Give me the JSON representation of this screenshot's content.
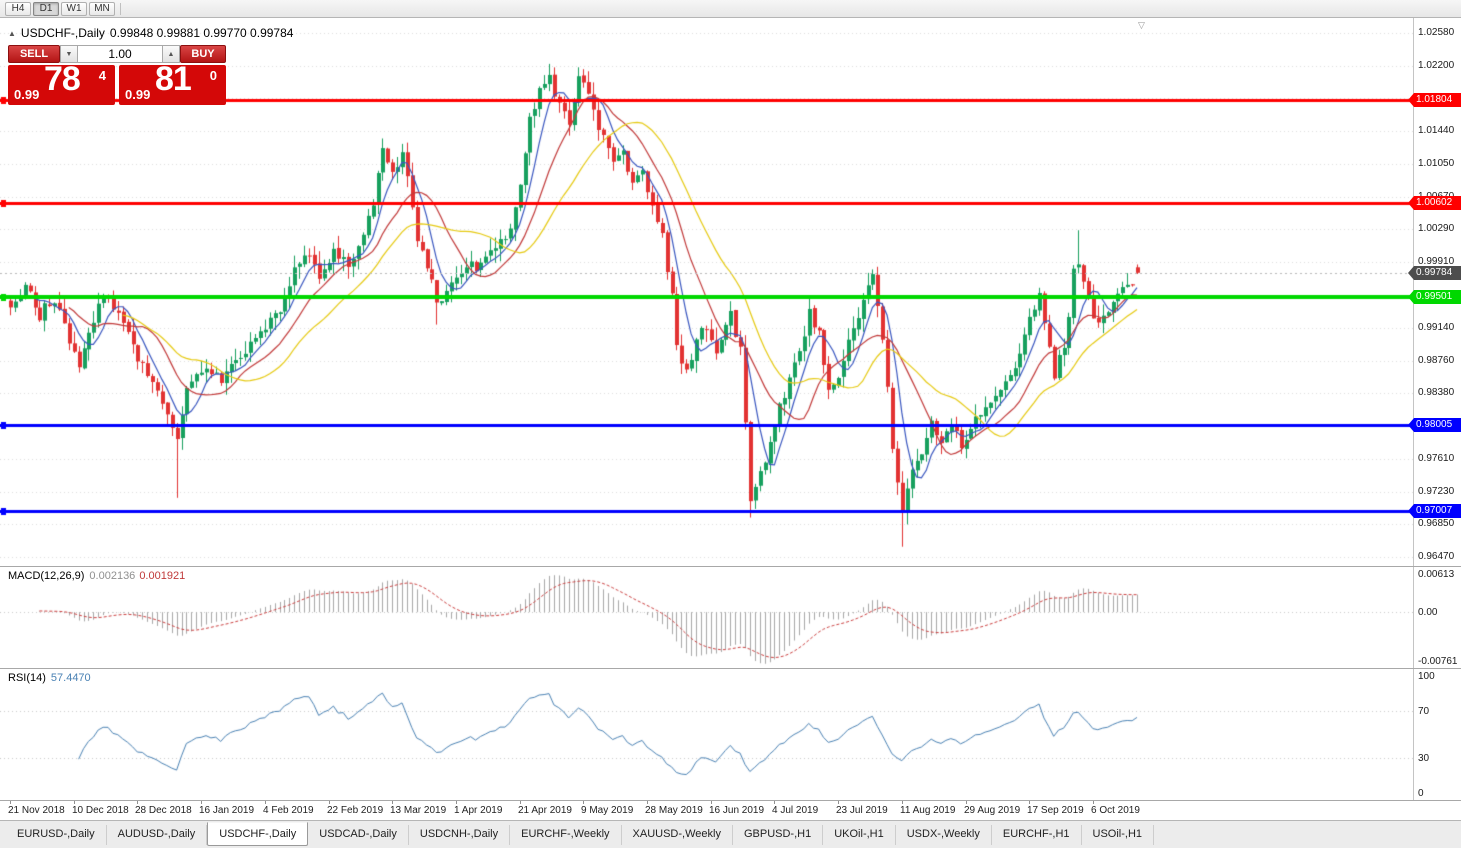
{
  "icons": {
    "collapse": "▲",
    "shift_marker": "▽",
    "spin_down": "▼",
    "spin_up": "▲"
  },
  "toolbar": {
    "periods": [
      "H4",
      "D1",
      "W1",
      "MN"
    ],
    "active_period": "D1"
  },
  "chart": {
    "title_symbol": "USDCHF-,Daily",
    "title_ohlc": "0.99848 0.99881 0.99770 0.99784",
    "one_click": {
      "sell_label": "SELL",
      "buy_label": "BUY",
      "volume": "1.00",
      "sell_price": {
        "prefix": "0.99",
        "big": "78",
        "sup": "4"
      },
      "buy_price": {
        "prefix": "0.99",
        "big": "81",
        "sup": "0"
      }
    }
  },
  "chart_data": {
    "type": "candlestick",
    "symbol": "USDCHF-",
    "timeframe": "Daily",
    "last_bar": {
      "open": 0.99848,
      "high": 0.99881,
      "low": 0.9977,
      "close": 0.99784
    },
    "bar_count": 231,
    "bars_per_label": 13,
    "x_labels": [
      "21 Nov 2018",
      "10 Dec 2018",
      "28 Dec 2018",
      "16 Jan 2019",
      "4 Feb 2019",
      "22 Feb 2019",
      "13 Mar 2019",
      "1 Apr 2019",
      "21 Apr 2019",
      "9 May 2019",
      "28 May 2019",
      "16 Jun 2019",
      "4 Jul 2019",
      "23 Jul 2019",
      "11 Aug 2019",
      "29 Aug 2019",
      "17 Sep 2019",
      "6 Oct 2019"
    ],
    "price_axis": {
      "top": 1.02755,
      "bottom": 0.96365,
      "ticks": [
        {
          "price": 1.0258,
          "label": "1.02580"
        },
        {
          "price": 1.022,
          "label": "1.02200"
        },
        {
          "price": 1.0144,
          "label": "1.01440"
        },
        {
          "price": 1.0105,
          "label": "1.01050"
        },
        {
          "price": 1.0067,
          "label": "1.00670"
        },
        {
          "price": 1.0029,
          "label": "1.00290"
        },
        {
          "price": 0.9991,
          "label": "0.99910"
        },
        {
          "price": 0.9914,
          "label": "0.99140"
        },
        {
          "price": 0.9876,
          "label": "0.98760"
        },
        {
          "price": 0.9838,
          "label": "0.98380"
        },
        {
          "price": 0.9761,
          "label": "0.97610"
        },
        {
          "price": 0.9723,
          "label": "0.97230"
        },
        {
          "price": 0.9685,
          "label": "0.96850"
        },
        {
          "price": 0.9647,
          "label": "0.96470"
        }
      ],
      "grid_prices": [
        1.0258,
        1.022,
        1.0182,
        1.0144,
        1.0105,
        1.0067,
        1.0029,
        0.9991,
        0.9953,
        0.9914,
        0.9876,
        0.9838,
        0.98,
        0.9761,
        0.9723,
        0.9685,
        0.9647
      ]
    },
    "anchor_format": [
      "bar_index",
      "close"
    ],
    "close_anchors": [
      [
        0,
        0.9945
      ],
      [
        3,
        0.9962
      ],
      [
        6,
        0.993
      ],
      [
        9,
        0.9948
      ],
      [
        12,
        0.9895
      ],
      [
        14,
        0.9868
      ],
      [
        17,
        0.992
      ],
      [
        19,
        0.9958
      ],
      [
        22,
        0.993
      ],
      [
        25,
        0.989
      ],
      [
        28,
        0.9862
      ],
      [
        31,
        0.983
      ],
      [
        33,
        0.9802
      ],
      [
        34,
        0.9785
      ],
      [
        36,
        0.9845
      ],
      [
        39,
        0.9868
      ],
      [
        43,
        0.9852
      ],
      [
        47,
        0.9885
      ],
      [
        51,
        0.9908
      ],
      [
        55,
        0.9938
      ],
      [
        58,
        0.9985
      ],
      [
        60,
        1.0002
      ],
      [
        63,
        0.9978
      ],
      [
        66,
        1.0
      ],
      [
        69,
        0.9988
      ],
      [
        71,
        1.0008
      ],
      [
        74,
        1.0058
      ],
      [
        76,
        1.0118
      ],
      [
        78,
        1.0095
      ],
      [
        80,
        1.0118
      ],
      [
        83,
        1.0022
      ],
      [
        85,
        0.999
      ],
      [
        87,
        0.9938
      ],
      [
        90,
        0.9968
      ],
      [
        93,
        0.999
      ],
      [
        96,
        0.9985
      ],
      [
        99,
        1.0005
      ],
      [
        101,
        1.0018
      ],
      [
        104,
        1.0075
      ],
      [
        106,
        1.0155
      ],
      [
        108,
        1.0192
      ],
      [
        110,
        1.0208
      ],
      [
        112,
        1.0172
      ],
      [
        114,
        1.0155
      ],
      [
        116,
        1.0202
      ],
      [
        118,
        1.0188
      ],
      [
        120,
        1.0148
      ],
      [
        123,
        1.0105
      ],
      [
        125,
        1.0118
      ],
      [
        127,
        1.0085
      ],
      [
        129,
        1.0098
      ],
      [
        131,
        1.0058
      ],
      [
        133,
        1.0022
      ],
      [
        135,
        0.9948
      ],
      [
        136,
        0.9892
      ],
      [
        138,
        0.9862
      ],
      [
        141,
        0.992
      ],
      [
        144,
        0.988
      ],
      [
        147,
        0.9928
      ],
      [
        149,
        0.9888
      ],
      [
        150,
        0.98
      ],
      [
        151,
        0.9712
      ],
      [
        153,
        0.9748
      ],
      [
        155,
        0.9775
      ],
      [
        157,
        0.982
      ],
      [
        159,
        0.9855
      ],
      [
        161,
        0.9888
      ],
      [
        163,
        0.9932
      ],
      [
        165,
        0.9905
      ],
      [
        167,
        0.9838
      ],
      [
        169,
        0.9862
      ],
      [
        171,
        0.99
      ],
      [
        173,
        0.9928
      ],
      [
        175,
        0.9962
      ],
      [
        176,
        0.9972
      ],
      [
        177,
        0.9935
      ],
      [
        178,
        0.9895
      ],
      [
        179,
        0.984
      ],
      [
        180,
        0.978
      ],
      [
        181,
        0.973
      ],
      [
        182,
        0.97
      ],
      [
        184,
        0.9748
      ],
      [
        186,
        0.9772
      ],
      [
        188,
        0.9802
      ],
      [
        190,
        0.9778
      ],
      [
        192,
        0.9802
      ],
      [
        194,
        0.9772
      ],
      [
        196,
        0.9798
      ],
      [
        198,
        0.9812
      ],
      [
        200,
        0.9828
      ],
      [
        202,
        0.9845
      ],
      [
        205,
        0.9872
      ],
      [
        207,
        0.9908
      ],
      [
        209,
        0.9942
      ],
      [
        210,
        0.9958
      ],
      [
        212,
        0.989
      ],
      [
        213,
        0.9862
      ],
      [
        215,
        0.9895
      ],
      [
        216,
        0.992
      ],
      [
        217,
        0.9985
      ],
      [
        218,
        0.9995
      ],
      [
        219,
        0.997
      ],
      [
        220,
        0.9945
      ],
      [
        221,
        0.9928
      ],
      [
        222,
        0.9915
      ],
      [
        224,
        0.9935
      ],
      [
        226,
        0.9952
      ],
      [
        228,
        0.9962
      ],
      [
        230,
        0.99784
      ]
    ],
    "spikes": [
      {
        "i": 34,
        "low": 0.9716
      },
      {
        "i": 76,
        "high": 1.0135
      },
      {
        "i": 87,
        "low": 0.9918
      },
      {
        "i": 110,
        "high": 1.0222
      },
      {
        "i": 116,
        "high": 1.0218
      },
      {
        "i": 151,
        "low": 0.9693
      },
      {
        "i": 182,
        "low": 0.9659
      },
      {
        "i": 218,
        "high": 1.0028
      }
    ],
    "hlines": [
      {
        "price": 1.01804,
        "label": "1.01804",
        "color": "#ff0000",
        "width": 3
      },
      {
        "price": 1.00602,
        "label": "1.00602",
        "color": "#ff0000",
        "width": 3
      },
      {
        "price": 0.99501,
        "label": "0.99501",
        "color": "#00d800",
        "width": 4
      },
      {
        "price": 0.98005,
        "label": "0.98005",
        "color": "#0000ff",
        "width": 3
      },
      {
        "price": 0.97007,
        "label": "0.97007",
        "color": "#0000ff",
        "width": 3
      }
    ],
    "current_price": {
      "value": 0.99784,
      "label": "0.99784"
    },
    "moving_averages": [
      {
        "period": 6,
        "color": "#3a57c0"
      },
      {
        "period": 13,
        "color": "#c23a3a"
      },
      {
        "period": 24,
        "color": "#e6ca12"
      }
    ],
    "macd": {
      "label": "MACD(12,26,9)",
      "value_main": "0.002136",
      "value_signal": "0.001921",
      "ylim": [
        -0.0078,
        0.0063
      ],
      "axis_labels": [
        {
          "v": 0.00613,
          "label": "0.00613"
        },
        {
          "v": 0,
          "label": "0.00"
        },
        {
          "v": -0.00761,
          "label": "-0.00761"
        }
      ]
    },
    "rsi": {
      "label": "RSI(14)",
      "value": "57.4470",
      "period": 14,
      "levels": [
        70,
        30
      ],
      "axis_labels": [
        {
          "v": 100,
          "label": "100"
        },
        {
          "v": 70,
          "label": "70"
        },
        {
          "v": 30,
          "label": "30"
        },
        {
          "v": 0,
          "label": "0"
        }
      ]
    }
  },
  "tabs": {
    "items": [
      "EURUSD-,Daily",
      "AUDUSD-,Daily",
      "USDCHF-,Daily",
      "USDCAD-,Daily",
      "USDCNH-,Daily",
      "EURCHF-,Weekly",
      "XAUUSD-,Weekly",
      "GBPUSD-,H1",
      "UKOil-,H1",
      "USDX-,Weekly",
      "EURCHF-,H1",
      "USOil-,H1"
    ],
    "active_index": 2
  },
  "colors": {
    "background": "#ffffff",
    "grid": "#dcdcdc",
    "candle_up": "#17a05e",
    "candle_down": "#e23232",
    "macd_hist": "#a8a8a8",
    "macd_signal": "#cc4040",
    "rsi_line": "#4a82b4",
    "price_tag": "#4d4d4d",
    "panel_red": "#d40808"
  }
}
